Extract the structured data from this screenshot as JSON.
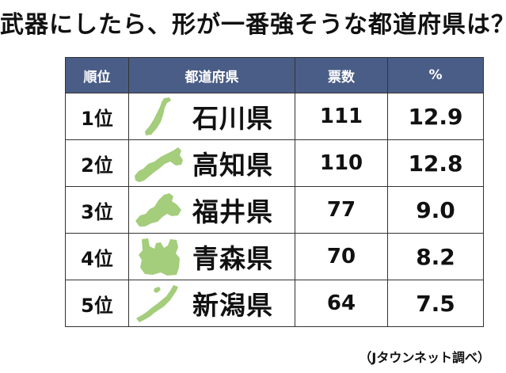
{
  "title": "武器にしたら、形が一番強そうな都道府県は？",
  "source": "（Jタウンネット調べ）",
  "colors": {
    "header_bg": "#4a5d86",
    "map_green": "#a4cd7c"
  },
  "chart_data": {
    "type": "table",
    "columns": [
      "順位",
      "都道府県",
      "票数",
      "%"
    ],
    "rows": [
      {
        "rank": "1位",
        "prefecture": "石川県",
        "votes": "111",
        "percent": "12.9",
        "icon": "ishikawa-map-icon"
      },
      {
        "rank": "2位",
        "prefecture": "高知県",
        "votes": "110",
        "percent": "12.8",
        "icon": "kochi-map-icon"
      },
      {
        "rank": "3位",
        "prefecture": "福井県",
        "votes": "77",
        "percent": "9.0",
        "icon": "fukui-map-icon"
      },
      {
        "rank": "4位",
        "prefecture": "青森県",
        "votes": "70",
        "percent": "8.2",
        "icon": "aomori-map-icon"
      },
      {
        "rank": "5位",
        "prefecture": "新潟県",
        "votes": "64",
        "percent": "7.5",
        "icon": "niigata-map-icon"
      }
    ]
  }
}
